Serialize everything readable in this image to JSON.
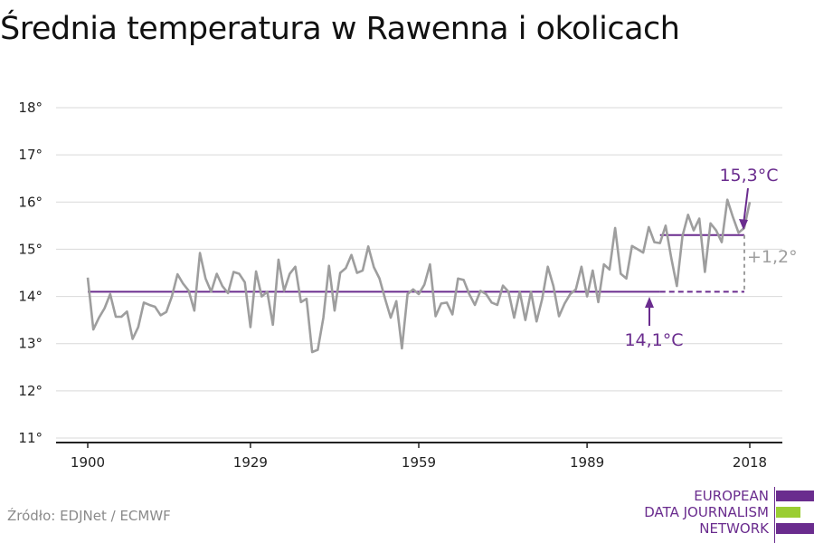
{
  "title": "Średnia temperatura w Rawenna i okolicach",
  "source": "Źródło: EDJNet / ECMWF",
  "logo": {
    "lines": [
      "EUROPEAN",
      "DATA JOURNALISM",
      "NETWORK"
    ],
    "colors": [
      "#6a2c8e",
      "#9acd32",
      "#6a2c8e"
    ]
  },
  "colors": {
    "series": "#9e9e9e",
    "average": "#6a2c8e",
    "difference": "#9e9e9e",
    "grid": "#d9d9d9",
    "axis": "#222222"
  },
  "chart_data": {
    "type": "line",
    "title": "Średnia temperatura w Rawenna i okolicach",
    "xlim": [
      1900,
      2018
    ],
    "ylim": [
      11,
      18
    ],
    "x_ticks": [
      1900,
      1929,
      1959,
      1989,
      2018
    ],
    "y_ticks": [
      11,
      12,
      13,
      14,
      15,
      16,
      17,
      18
    ],
    "y_tick_labels": [
      "11°",
      "12°",
      "13°",
      "14°",
      "15°",
      "16°",
      "17°",
      "18°"
    ],
    "grid": true,
    "series": [
      {
        "x_start": 1900,
        "values": [
          14.4,
          13.3,
          13.55,
          13.75,
          14.05,
          13.57,
          13.57,
          13.68,
          13.1,
          13.35,
          13.87,
          13.82,
          13.78,
          13.6,
          13.67,
          14.0,
          14.47,
          14.27,
          14.12,
          13.7,
          14.92,
          14.38,
          14.1,
          14.48,
          14.22,
          14.07,
          14.52,
          14.48,
          14.3,
          13.35,
          14.53,
          14.0,
          14.1,
          13.4,
          14.78,
          14.12,
          14.48,
          14.63,
          13.88,
          13.95,
          12.82,
          12.87,
          13.55,
          14.65,
          13.7,
          14.5,
          14.6,
          14.88,
          14.5,
          14.55,
          15.06,
          14.62,
          14.38,
          13.95,
          13.55,
          13.9,
          12.9,
          14.05,
          14.15,
          14.05,
          14.25,
          14.68,
          13.58,
          13.85,
          13.87,
          13.62,
          14.38,
          14.35,
          14.05,
          13.82,
          14.12,
          14.05,
          13.87,
          13.82,
          14.23,
          14.1,
          13.55,
          14.1,
          13.5,
          14.1,
          13.47,
          13.95,
          14.63,
          14.22,
          13.58,
          13.85,
          14.05,
          14.15,
          14.63,
          14.0,
          14.55,
          13.88,
          14.68,
          14.57,
          15.45,
          14.48,
          14.38,
          15.07,
          15.0,
          14.93,
          15.47,
          15.15,
          15.13,
          15.5,
          14.82,
          14.22,
          15.28,
          15.73,
          15.4,
          15.65,
          14.52,
          15.55,
          15.4,
          15.15,
          16.05,
          15.68,
          15.35,
          15.45,
          16.0
        ]
      }
    ],
    "reference_lines": [
      {
        "label": "14,1°C",
        "value": 14.1,
        "x_from": 1900,
        "x_to": 2018,
        "solid_until": 2002
      },
      {
        "label": "15,3°C",
        "value": 15.3,
        "x_from": 2002,
        "x_to": 2018
      }
    ],
    "difference_label": "+1,2°"
  }
}
